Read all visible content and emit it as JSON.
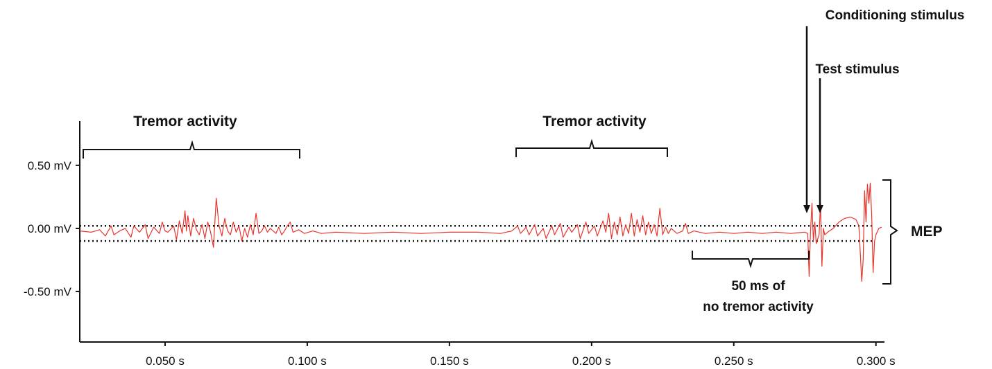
{
  "chart_data": {
    "type": "line",
    "title": "",
    "xlabel": "",
    "ylabel": "",
    "xlim": [
      0.02,
      0.303
    ],
    "ylim": [
      -0.9,
      0.85
    ],
    "grid": false,
    "legend": "none",
    "x_ticks": [
      {
        "value": 0.05,
        "label": "0.050 s"
      },
      {
        "value": 0.1,
        "label": "0.100 s"
      },
      {
        "value": 0.15,
        "label": "0.150 s"
      },
      {
        "value": 0.2,
        "label": "0.200 s"
      },
      {
        "value": 0.25,
        "label": "0.250 s"
      },
      {
        "value": 0.3,
        "label": "0.300 s"
      }
    ],
    "y_ticks": [
      {
        "value": 0.5,
        "label": "0.50 mV"
      },
      {
        "value": 0.0,
        "label": "0.00 mV"
      },
      {
        "value": -0.5,
        "label": "-0.50 mV"
      }
    ],
    "threshold_lines": [
      0.02,
      -0.1
    ],
    "series_color": "#e8342c",
    "series": [
      {
        "name": "",
        "points": [
          [
            0.02,
            -0.02
          ],
          [
            0.024,
            -0.03
          ],
          [
            0.027,
            -0.01
          ],
          [
            0.029,
            -0.06
          ],
          [
            0.031,
            0.02
          ],
          [
            0.032,
            -0.05
          ],
          [
            0.034,
            -0.02
          ],
          [
            0.036,
            0.0
          ],
          [
            0.038,
            -0.07
          ],
          [
            0.039,
            0.02
          ],
          [
            0.041,
            -0.03
          ],
          [
            0.043,
            0.03
          ],
          [
            0.044,
            -0.08
          ],
          [
            0.046,
            0.01
          ],
          [
            0.048,
            -0.04
          ],
          [
            0.049,
            0.05
          ],
          [
            0.05,
            -0.02
          ],
          [
            0.051,
            -0.03
          ],
          [
            0.053,
            0.02
          ],
          [
            0.054,
            -0.09
          ],
          [
            0.055,
            0.06
          ],
          [
            0.056,
            -0.04
          ],
          [
            0.057,
            0.14
          ],
          [
            0.0575,
            -0.02
          ],
          [
            0.058,
            0.1
          ],
          [
            0.059,
            -0.06
          ],
          [
            0.06,
            0.08
          ],
          [
            0.061,
            -0.01
          ],
          [
            0.062,
            -0.05
          ],
          [
            0.063,
            0.03
          ],
          [
            0.064,
            -0.08
          ],
          [
            0.065,
            0.05
          ],
          [
            0.066,
            -0.03
          ],
          [
            0.067,
            -0.15
          ],
          [
            0.068,
            0.24
          ],
          [
            0.069,
            0.02
          ],
          [
            0.07,
            -0.06
          ],
          [
            0.071,
            0.08
          ],
          [
            0.072,
            -0.02
          ],
          [
            0.073,
            -0.05
          ],
          [
            0.074,
            0.05
          ],
          [
            0.075,
            -0.03
          ],
          [
            0.076,
            0.02
          ],
          [
            0.077,
            -0.1
          ],
          [
            0.078,
            0.0
          ],
          [
            0.079,
            -0.07
          ],
          [
            0.08,
            0.03
          ],
          [
            0.081,
            -0.05
          ],
          [
            0.082,
            0.12
          ],
          [
            0.083,
            -0.04
          ],
          [
            0.084,
            -0.02
          ],
          [
            0.085,
            0.02
          ],
          [
            0.086,
            -0.03
          ],
          [
            0.087,
            0.0
          ],
          [
            0.089,
            -0.04
          ],
          [
            0.09,
            0.01
          ],
          [
            0.091,
            -0.05
          ],
          [
            0.092,
            -0.02
          ],
          [
            0.093,
            0.02
          ],
          [
            0.094,
            0.05
          ],
          [
            0.095,
            -0.03
          ],
          [
            0.097,
            -0.01
          ],
          [
            0.099,
            -0.04
          ],
          [
            0.102,
            -0.02
          ],
          [
            0.105,
            -0.04
          ],
          [
            0.11,
            -0.03
          ],
          [
            0.12,
            -0.04
          ],
          [
            0.13,
            -0.03
          ],
          [
            0.14,
            -0.04
          ],
          [
            0.15,
            -0.03
          ],
          [
            0.16,
            -0.03
          ],
          [
            0.168,
            -0.04
          ],
          [
            0.172,
            -0.02
          ],
          [
            0.174,
            0.02
          ],
          [
            0.175,
            -0.04
          ],
          [
            0.177,
            0.01
          ],
          [
            0.178,
            -0.05
          ],
          [
            0.18,
            0.03
          ],
          [
            0.181,
            -0.06
          ],
          [
            0.183,
            0.0
          ],
          [
            0.184,
            -0.08
          ],
          [
            0.186,
            0.02
          ],
          [
            0.187,
            -0.05
          ],
          [
            0.189,
            0.04
          ],
          [
            0.19,
            -0.07
          ],
          [
            0.192,
            0.01
          ],
          [
            0.193,
            -0.03
          ],
          [
            0.195,
            0.03
          ],
          [
            0.196,
            -0.08
          ],
          [
            0.198,
            0.05
          ],
          [
            0.199,
            -0.04
          ],
          [
            0.201,
            0.02
          ],
          [
            0.202,
            -0.06
          ],
          [
            0.204,
            0.06
          ],
          [
            0.205,
            -0.03
          ],
          [
            0.206,
            0.12
          ],
          [
            0.207,
            -0.08
          ],
          [
            0.208,
            0.05
          ],
          [
            0.209,
            -0.05
          ],
          [
            0.21,
            0.09
          ],
          [
            0.211,
            -0.06
          ],
          [
            0.212,
            0.03
          ],
          [
            0.213,
            -0.04
          ],
          [
            0.214,
            0.12
          ],
          [
            0.215,
            -0.06
          ],
          [
            0.216,
            0.07
          ],
          [
            0.217,
            -0.03
          ],
          [
            0.218,
            0.1
          ],
          [
            0.219,
            -0.05
          ],
          [
            0.22,
            0.05
          ],
          [
            0.221,
            -0.04
          ],
          [
            0.222,
            0.03
          ],
          [
            0.223,
            -0.06
          ],
          [
            0.224,
            0.16
          ],
          [
            0.225,
            -0.05
          ],
          [
            0.226,
            0.01
          ],
          [
            0.227,
            -0.04
          ],
          [
            0.228,
            0.0
          ],
          [
            0.23,
            -0.04
          ],
          [
            0.232,
            -0.02
          ],
          [
            0.233,
            0.04
          ],
          [
            0.234,
            -0.04
          ],
          [
            0.236,
            -0.02
          ],
          [
            0.24,
            -0.04
          ],
          [
            0.245,
            -0.03
          ],
          [
            0.25,
            -0.04
          ],
          [
            0.255,
            -0.03
          ],
          [
            0.26,
            -0.04
          ],
          [
            0.265,
            -0.03
          ],
          [
            0.27,
            -0.04
          ],
          [
            0.275,
            -0.03
          ],
          [
            0.276,
            -0.04
          ],
          [
            0.2765,
            -0.38
          ],
          [
            0.277,
            -0.02
          ],
          [
            0.2775,
            0.2
          ],
          [
            0.278,
            -0.1
          ],
          [
            0.2785,
            0.05
          ],
          [
            0.279,
            -0.12
          ],
          [
            0.28,
            -0.05
          ],
          [
            0.2805,
            0.2
          ],
          [
            0.281,
            -0.3
          ],
          [
            0.2815,
            0.0
          ],
          [
            0.282,
            -0.05
          ],
          [
            0.283,
            -0.03
          ],
          [
            0.285,
            0.0
          ],
          [
            0.287,
            0.05
          ],
          [
            0.289,
            0.08
          ],
          [
            0.291,
            0.09
          ],
          [
            0.293,
            0.07
          ],
          [
            0.294,
            0.02
          ],
          [
            0.2945,
            -0.2
          ],
          [
            0.295,
            -0.42
          ],
          [
            0.2955,
            -0.25
          ],
          [
            0.296,
            0.3
          ],
          [
            0.2965,
            0.05
          ],
          [
            0.297,
            0.35
          ],
          [
            0.2975,
            0.2
          ],
          [
            0.298,
            0.36
          ],
          [
            0.2985,
            0.1
          ],
          [
            0.299,
            -0.35
          ],
          [
            0.2995,
            -0.1
          ],
          [
            0.3,
            -0.05
          ],
          [
            0.301,
            0.0
          ],
          [
            0.302,
            0.01
          ]
        ]
      }
    ],
    "annotations": [
      {
        "text": "Tremor activity",
        "brace_from": 0.021,
        "brace_to": 0.095
      },
      {
        "text": "Tremor activity",
        "brace_from": 0.173,
        "brace_to": 0.228
      },
      {
        "text_lines": [
          "50 ms of",
          "no tremor activity"
        ],
        "brace_from": 0.236,
        "brace_to": 0.277
      },
      {
        "text": "Conditioning stimulus",
        "x": 0.277
      },
      {
        "text": "Test stimulus",
        "x": 0.281
      },
      {
        "text": "MEP",
        "brace_from": 0.36,
        "brace_to": -0.43
      }
    ]
  }
}
